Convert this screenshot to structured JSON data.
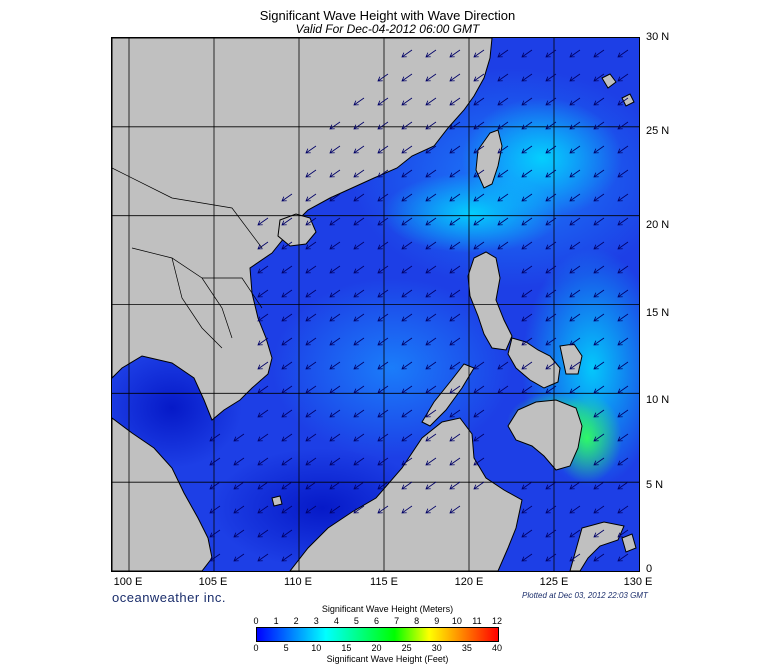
{
  "header": {
    "title": "Significant Wave Height with Wave Direction",
    "subtitle": "Valid For Dec-04-2012 06:00 GMT"
  },
  "map": {
    "lon_range": [
      99,
      130
    ],
    "lat_range": [
      0,
      30
    ],
    "lat_labels": [
      "30 N",
      "25 N",
      "20 N",
      "15 N",
      "10 N",
      "5 N",
      "0"
    ],
    "lon_labels": [
      "100 E",
      "105 E",
      "110 E",
      "115 E",
      "120 E",
      "125 E",
      "130 E"
    ],
    "land_color": "#c0c0c0",
    "sea_base_color": "#1d3fe6",
    "arrow_direction": "toward southwest",
    "arrow_color": "#000080"
  },
  "footer": {
    "brand": "oceanweather inc.",
    "plotted_at": "Plotted at Dec 03, 2012 22:03 GMT"
  },
  "colorbar": {
    "title_meters": "Significant Wave Height (Meters)",
    "title_feet": "Significant Wave Height (Feet)",
    "meter_ticks": [
      "0",
      "1",
      "2",
      "3",
      "4",
      "5",
      "6",
      "7",
      "8",
      "9",
      "10",
      "11",
      "12"
    ],
    "feet_ticks": [
      "0",
      "5",
      "10",
      "15",
      "20",
      "25",
      "30",
      "35",
      "40"
    ],
    "colors": [
      "#0000ff",
      "#0040ff",
      "#0080ff",
      "#00c0ff",
      "#00ffff",
      "#00ffc0",
      "#00ff80",
      "#00ff40",
      "#00ff00",
      "#80ff00",
      "#ffff00",
      "#ffc000",
      "#ff8000",
      "#ff4000",
      "#ff0000"
    ]
  }
}
